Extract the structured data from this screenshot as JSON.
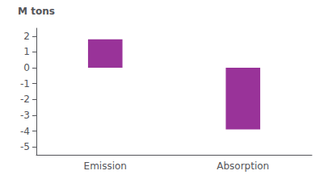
{
  "chart_data": {
    "type": "bar",
    "ylabel": "M tons",
    "categories": [
      "Emission",
      "Absorption"
    ],
    "values": [
      1.8,
      -3.9
    ],
    "color": "#993399",
    "ylim": [
      -5.5,
      2.5
    ],
    "yticks": [
      -5,
      -4,
      -3,
      -2,
      -1,
      0,
      1,
      2
    ],
    "grid": false
  }
}
